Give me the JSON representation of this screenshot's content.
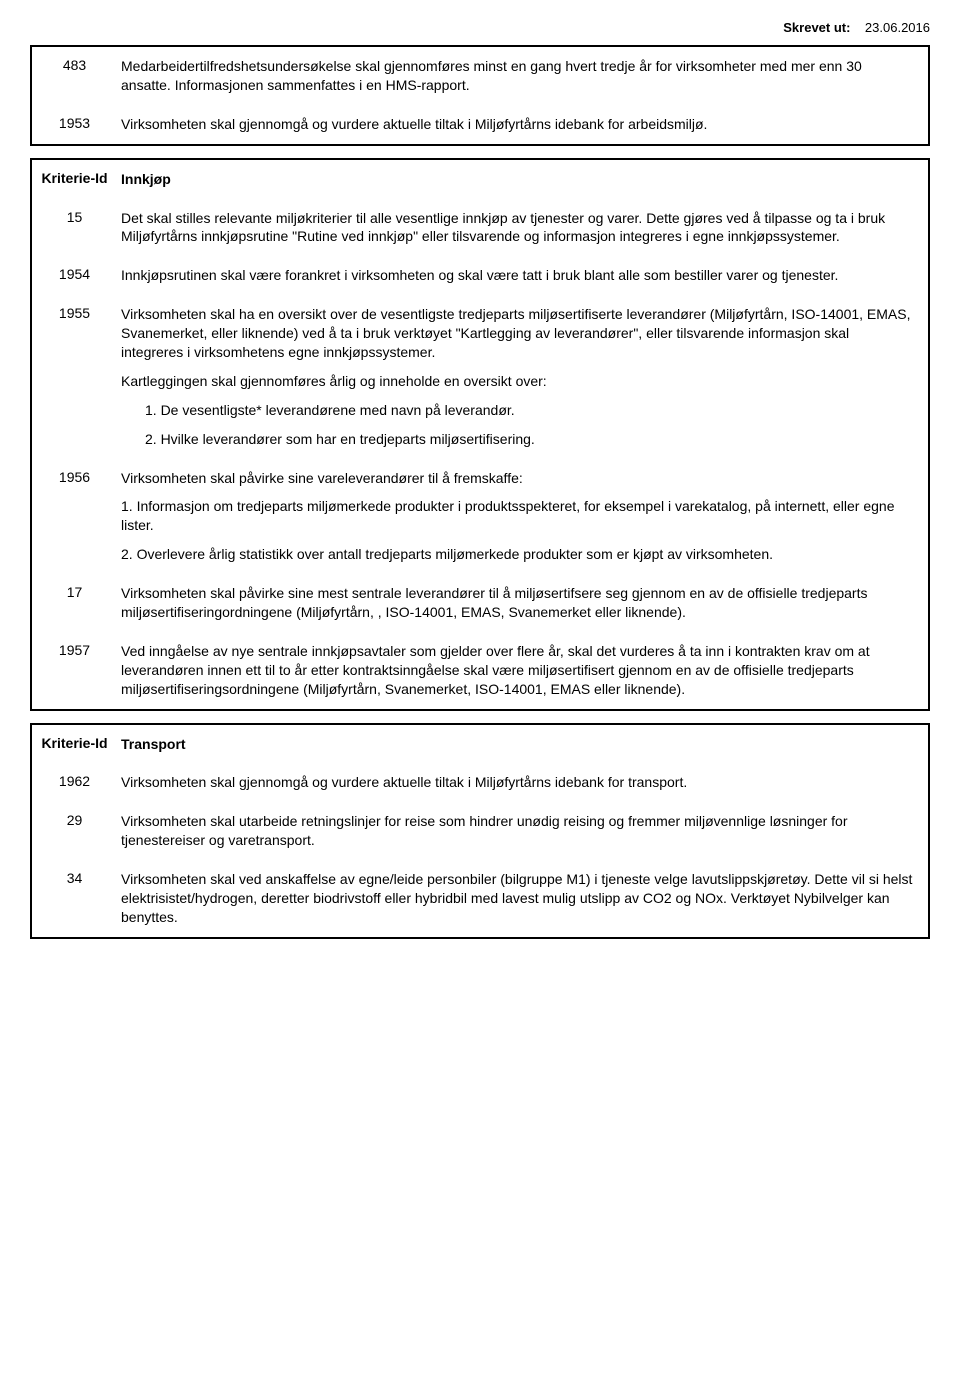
{
  "header": {
    "label": "Skrevet ut:",
    "date": "23.06.2016"
  },
  "boxes": [
    {
      "rows": [
        {
          "id": "483",
          "paras": [
            "Medarbeidertilfredshetsundersøkelse skal gjennomføres minst en gang hvert tredje år for virksomheter med mer enn 30 ansatte. Informasjonen sammenfattes i en HMS-rapport."
          ]
        },
        {
          "id": "1953",
          "paras": [
            "Virksomheten skal gjennomgå og vurdere aktuelle tiltak i Miljøfyrtårns idebank for arbeidsmiljø."
          ]
        }
      ]
    },
    {
      "rows": [
        {
          "id": "Kriterie-Id",
          "id_bold": true,
          "paras": [
            "Innkjøp"
          ],
          "bold": true
        },
        {
          "id": "15",
          "paras": [
            "Det skal stilles relevante miljøkriterier til alle vesentlige innkjøp av tjenester og varer. Dette gjøres ved å tilpasse og ta i bruk Miljøfyrtårns innkjøpsrutine \"Rutine ved innkjøp\" eller tilsvarende og informasjon integreres i egne innkjøpssystemer."
          ]
        },
        {
          "id": "1954",
          "paras": [
            "Innkjøpsrutinen skal være forankret i virksomheten og skal være tatt i bruk blant alle som bestiller varer og tjenester."
          ]
        },
        {
          "id": "1955",
          "paras": [
            "Virksomheten skal ha en oversikt over de vesentligste tredjeparts miljøsertifiserte leverandører  (Miljøfyrtårn, ISO-14001, EMAS, Svanemerket, eller liknende) ved å ta i bruk verktøyet \"Kartlegging av leverandører\", eller tilsvarende informasjon skal integreres i virksomhetens egne innkjøpssystemer.",
            "Kartleggingen skal gjennomføres årlig og inneholde en oversikt over:",
            {
              "text": "1. De vesentligste* leverandørene med navn på leverandør.",
              "indent": true
            },
            {
              "text": "2. Hvilke leverandører som har en tredjeparts miljøsertifisering.",
              "indent": true
            }
          ]
        },
        {
          "id": "1956",
          "paras": [
            "Virksomheten skal påvirke sine vareleverandører til å fremskaffe:",
            "1. Informasjon om tredjeparts  miljømerkede produkter i produktsspekteret, for eksempel  i varekatalog,  på internett, eller egne lister.",
            "2. Overlevere årlig statistikk over antall tredjeparts miljømerkede produkter som er kjøpt av virksomheten."
          ]
        },
        {
          "id": "17",
          "paras": [
            "Virksomheten skal påvirke sine mest sentrale leverandører til å miljøsertifsere seg gjennom en av de offisielle tredjeparts miljøsertifiseringordningene (Miljøfyrtårn, , ISO-14001, EMAS, Svanemerket eller liknende)."
          ]
        },
        {
          "id": "1957",
          "paras": [
            "Ved inngåelse av nye sentrale innkjøpsavtaler som gjelder over flere år, skal det vurderes å ta inn i kontrakten krav om at leverandøren innen ett til to år etter kontraktsinngåelse skal være miljøsertifisert gjennom en av de offisielle tredjeparts miljøsertifiseringsordningene (Miljøfyrtårn, Svanemerket, ISO-14001, EMAS eller liknende)."
          ]
        }
      ]
    },
    {
      "rows": [
        {
          "id": "Kriterie-Id",
          "id_bold": true,
          "paras": [
            "Transport"
          ],
          "bold": true
        },
        {
          "id": "1962",
          "paras": [
            "Virksomheten skal gjennomgå og vurdere aktuelle tiltak i Miljøfyrtårns idebank for transport."
          ]
        },
        {
          "id": "29",
          "paras": [
            "Virksomheten skal utarbeide retningslinjer for reise som hindrer unødig reising og fremmer miljøvennlige løsninger for tjenestereiser og  varetransport."
          ]
        },
        {
          "id": "34",
          "paras": [
            "Virksomheten skal ved anskaffelse av egne/leide personbiler (bilgruppe M1) i tjeneste velge lavutslippskjøretøy. Dette vil si helst elektrisistet/hydrogen, deretter biodrivstoff eller hybridbil med lavest mulig utslipp av CO2 og NOx. Verktøyet Nybilvelger kan benyttes."
          ]
        }
      ]
    }
  ]
}
